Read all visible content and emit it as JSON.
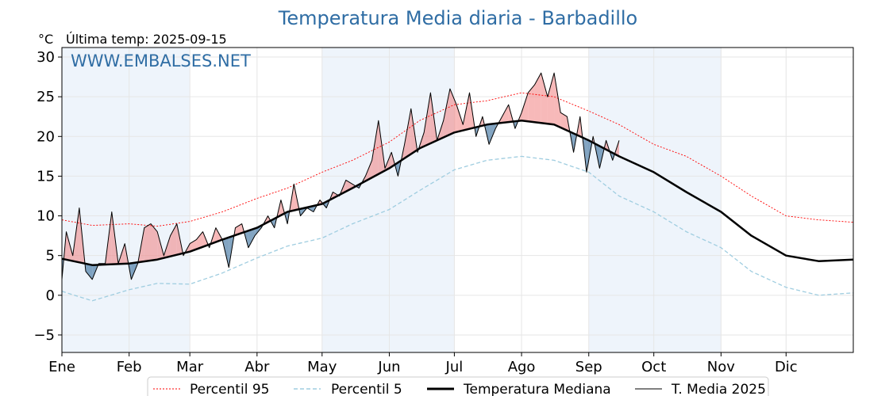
{
  "chart_data": {
    "type": "line",
    "title": "Temperatura Media diaria - Barbadillo",
    "unit": "°C",
    "last_temp_label": "Última temp: 2025-09-15",
    "watermark": "WWW.EMBALSES.NET",
    "ylim": [
      -7.2,
      31.2
    ],
    "y_ticks": [
      -5,
      0,
      5,
      10,
      15,
      20,
      25,
      30
    ],
    "y_tick_labels": [
      "−5",
      "0",
      "5",
      "10",
      "15",
      "20",
      "25",
      "30"
    ],
    "x_range_days": [
      1,
      366
    ],
    "months": [
      {
        "label": "Ene",
        "day": 1
      },
      {
        "label": "Feb",
        "day": 32
      },
      {
        "label": "Mar",
        "day": 60
      },
      {
        "label": "Abr",
        "day": 91
      },
      {
        "label": "May",
        "day": 121
      },
      {
        "label": "Jun",
        "day": 152
      },
      {
        "label": "Jul",
        "day": 182
      },
      {
        "label": "Ago",
        "day": 213
      },
      {
        "label": "Sep",
        "day": 244
      },
      {
        "label": "Oct",
        "day": 274
      },
      {
        "label": "Nov",
        "day": 305
      },
      {
        "label": "Dic",
        "day": 335
      }
    ],
    "grid": true,
    "legend_position": "bottom",
    "colors": {
      "p95": "#ff0000",
      "p5": "#9fcde0",
      "median": "#000000",
      "current": "#000000",
      "above": "#f08080",
      "below": "#4e7fa8",
      "shade": "#eef4fb",
      "title": "#2f6da4"
    },
    "series": [
      {
        "name": "Percentil 95",
        "x": [
          1,
          15,
          32,
          45,
          60,
          75,
          91,
          105,
          121,
          135,
          152,
          166,
          182,
          197,
          213,
          228,
          244,
          258,
          274,
          289,
          305,
          319,
          335,
          350,
          366
        ],
        "values": [
          9.5,
          8.8,
          9.0,
          8.7,
          9.3,
          10.5,
          12.2,
          13.5,
          15.5,
          17.0,
          19.3,
          22.0,
          24.0,
          24.5,
          25.5,
          25.0,
          23.2,
          21.5,
          19.0,
          17.5,
          15.0,
          12.5,
          10.0,
          9.5,
          9.2
        ]
      },
      {
        "name": "Percentil 5",
        "x": [
          1,
          15,
          32,
          45,
          60,
          75,
          91,
          105,
          121,
          135,
          152,
          166,
          182,
          197,
          213,
          228,
          244,
          258,
          274,
          289,
          305,
          319,
          335,
          350,
          366
        ],
        "values": [
          0.5,
          -0.7,
          0.7,
          1.5,
          1.4,
          2.8,
          4.7,
          6.2,
          7.2,
          9.0,
          10.8,
          13.2,
          15.8,
          17.0,
          17.5,
          17.0,
          15.5,
          12.5,
          10.5,
          8.0,
          6.0,
          3.0,
          1.0,
          0.0,
          0.3
        ]
      },
      {
        "name": "Temperatura Mediana",
        "x": [
          1,
          15,
          32,
          45,
          60,
          75,
          91,
          105,
          121,
          135,
          152,
          166,
          182,
          197,
          213,
          228,
          244,
          258,
          274,
          289,
          305,
          319,
          335,
          350,
          366
        ],
        "values": [
          4.6,
          3.8,
          4.0,
          4.5,
          5.5,
          7.0,
          8.5,
          10.5,
          11.5,
          13.5,
          16.0,
          18.5,
          20.5,
          21.5,
          22.0,
          21.5,
          19.5,
          17.5,
          15.5,
          13.0,
          10.5,
          7.5,
          5.0,
          4.3,
          4.5
        ]
      },
      {
        "name": "T. Media 2025",
        "x": [
          1,
          3,
          6,
          9,
          12,
          15,
          18,
          21,
          24,
          27,
          30,
          33,
          36,
          39,
          42,
          45,
          48,
          51,
          54,
          57,
          60,
          63,
          66,
          69,
          72,
          75,
          78,
          81,
          84,
          87,
          90,
          93,
          96,
          99,
          102,
          105,
          108,
          111,
          114,
          117,
          120,
          123,
          126,
          129,
          132,
          135,
          138,
          141,
          144,
          147,
          150,
          153,
          156,
          159,
          162,
          165,
          168,
          171,
          174,
          177,
          180,
          183,
          186,
          189,
          192,
          195,
          198,
          201,
          204,
          207,
          210,
          213,
          216,
          219,
          222,
          225,
          228,
          231,
          234,
          237,
          240,
          243,
          246,
          249,
          252,
          255,
          258
        ],
        "values": [
          2.0,
          8.0,
          5.0,
          11.0,
          3.0,
          2.0,
          4.0,
          4.0,
          10.5,
          4.0,
          6.5,
          2.0,
          4.0,
          8.5,
          9.0,
          8.0,
          5.0,
          7.5,
          9.0,
          5.0,
          6.5,
          7.0,
          8.0,
          6.0,
          8.5,
          7.0,
          3.5,
          8.5,
          9.0,
          6.0,
          7.5,
          8.5,
          10.0,
          8.5,
          12.0,
          9.0,
          14.0,
          10.0,
          11.0,
          10.5,
          12.0,
          11.0,
          13.0,
          12.5,
          14.5,
          14.0,
          13.5,
          15.0,
          17.0,
          22.0,
          16.0,
          18.0,
          15.0,
          19.0,
          23.5,
          18.0,
          20.5,
          25.5,
          19.5,
          22.0,
          26.0,
          24.0,
          21.5,
          25.5,
          20.0,
          22.5,
          19.0,
          21.0,
          22.5,
          24.0,
          21.0,
          23.0,
          25.5,
          26.5,
          28.0,
          25.0,
          28.0,
          23.0,
          22.5,
          18.0,
          22.5,
          15.5,
          20.0,
          16.0,
          19.5,
          17.0,
          19.5
        ]
      }
    ]
  }
}
